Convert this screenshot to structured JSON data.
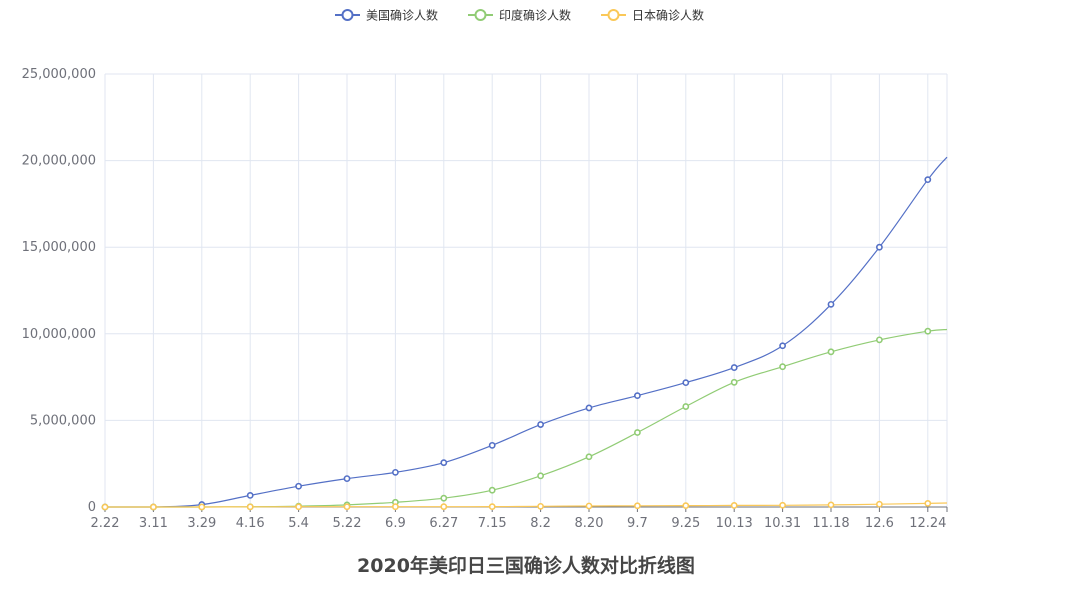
{
  "chart_data": {
    "type": "line",
    "title": "2020年美印日三国确诊人数对比折线图",
    "legend_position": "top-center",
    "grid": true,
    "xlabel": "",
    "ylabel": "",
    "ylim": [
      0,
      25000000
    ],
    "y_ticks": [
      "0",
      "5,000,000",
      "10,000,000",
      "15,000,000",
      "20,000,000",
      "25,000,000"
    ],
    "categories": [
      "2.22",
      "3.11",
      "3.29",
      "4.16",
      "5.4",
      "5.22",
      "6.9",
      "6.27",
      "7.15",
      "8.2",
      "8.20",
      "9.7",
      "9.25",
      "10.13",
      "10.31",
      "11.18",
      "12.6",
      "12.24"
    ],
    "series": [
      {
        "name": "美国确诊人数",
        "color": "#5470c6",
        "values": [
          30,
          1300,
          140000,
          670000,
          1200000,
          1640000,
          2000000,
          2560000,
          3560000,
          4760000,
          5720000,
          6430000,
          7180000,
          8050000,
          9310000,
          11700000,
          15000000,
          18900000
        ],
        "end_value": 20200000
      },
      {
        "name": "印度确诊人数",
        "color": "#91cc75",
        "values": [
          3,
          60,
          1000,
          13000,
          46000,
          120000,
          270000,
          510000,
          970000,
          1800000,
          2900000,
          4300000,
          5800000,
          7200000,
          8100000,
          8960000,
          9650000,
          10150000
        ],
        "end_value": 10250000
      },
      {
        "name": "日本确诊人数",
        "color": "#fac858",
        "values": [
          130,
          600,
          1800,
          9000,
          15000,
          16600,
          17200,
          18200,
          22000,
          38000,
          59000,
          72000,
          80000,
          90000,
          101000,
          122000,
          160000,
          210000
        ],
        "end_value": 230000
      }
    ]
  }
}
